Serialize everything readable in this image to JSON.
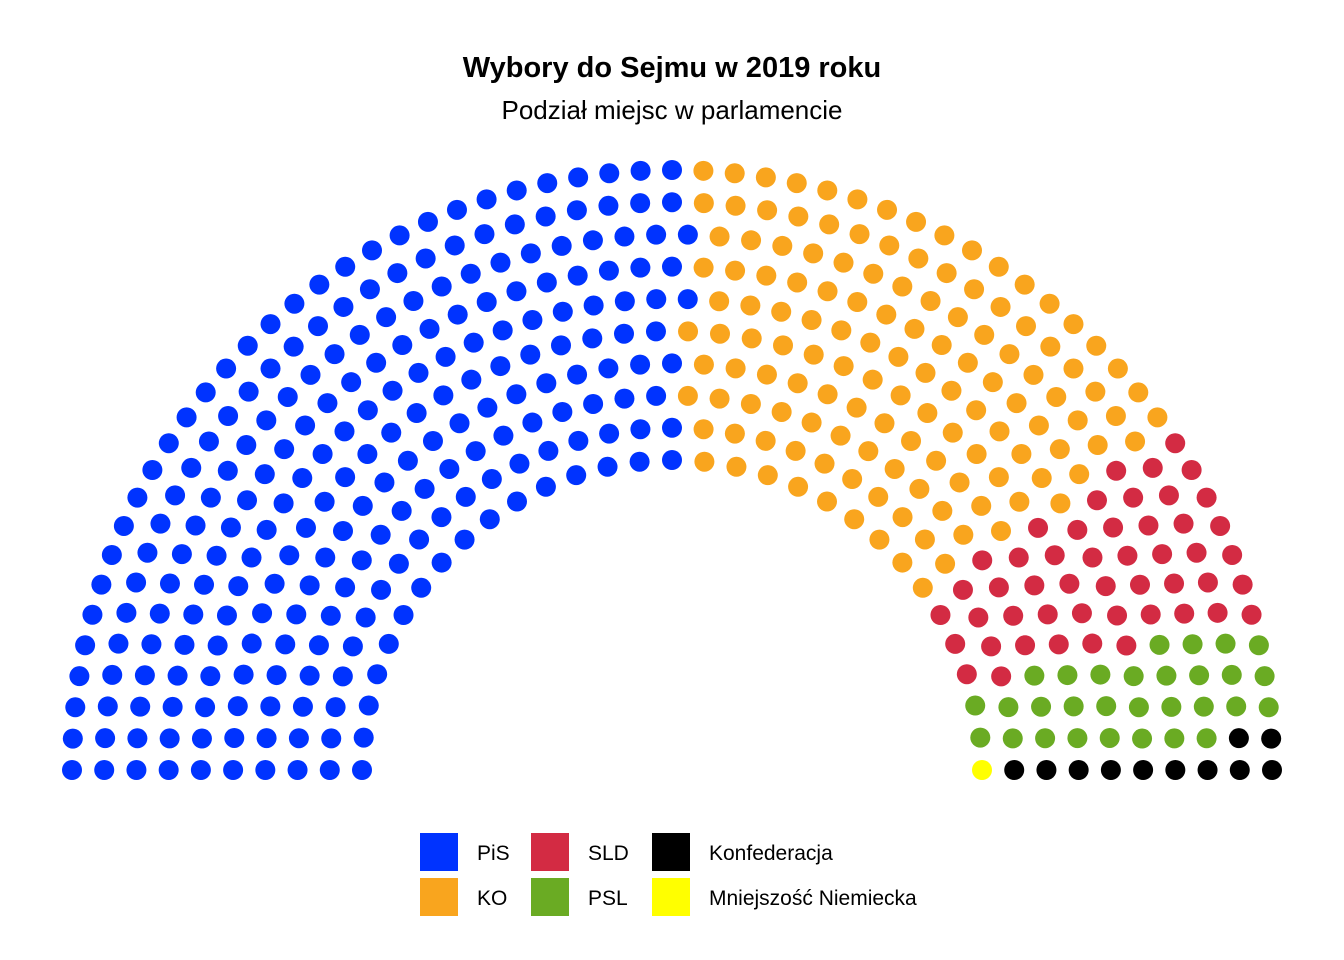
{
  "chart_data": {
    "type": "parliament",
    "title": "Wybory do Sejmu w 2019 roku",
    "subtitle": "Podział miejsc w parlamencie",
    "total_seats": 460,
    "series": [
      {
        "name": "PiS",
        "seats": 235,
        "color": "#0033FF"
      },
      {
        "name": "KO",
        "seats": 134,
        "color": "#F9A51E"
      },
      {
        "name": "SLD",
        "seats": 49,
        "color": "#D32B43"
      },
      {
        "name": "PSL",
        "seats": 30,
        "color": "#6AAB23"
      },
      {
        "name": "Konfederacja",
        "seats": 11,
        "color": "#000000"
      },
      {
        "name": "Mniejszość Niemiecka",
        "seats": 1,
        "color": "#FFFF00"
      }
    ],
    "legend": {
      "position": "bottom",
      "columns": [
        [
          "PiS",
          "KO"
        ],
        [
          "SLD",
          "PSL"
        ],
        [
          "Konfederacja",
          "Mniejszość Niemiecka"
        ]
      ]
    }
  }
}
